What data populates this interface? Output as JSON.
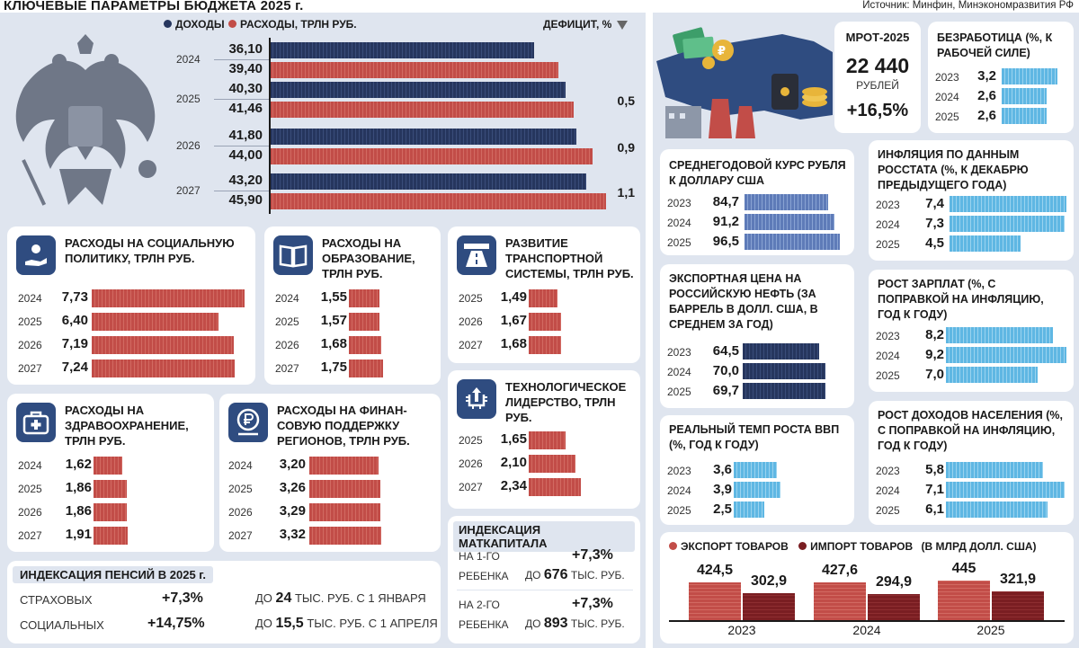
{
  "header": {
    "title": "КЛЮЧЕВЫЕ ПАРАМЕТРЫ БЮДЖЕТА 2025 г.",
    "source": "Источник: Минфин, Минэкономразвития РФ"
  },
  "colors": {
    "revenue": "#26365e",
    "expense": "#c24d48",
    "steel": "#5e7bb8",
    "light": "#5fb7e3",
    "panel": "#dfe5ef"
  },
  "chart_data": [
    {
      "id": "budget",
      "type": "bar",
      "title": "",
      "legend": [
        "ДОХОДЫ",
        "РАСХОДЫ, ТРЛН РУБ."
      ],
      "deficit_label": "ДЕФИЦИТ, %",
      "categories": [
        "2024",
        "2025",
        "2026",
        "2027"
      ],
      "series": [
        {
          "name": "ДОХОДЫ",
          "values": [
            "36,10",
            "40,30",
            "41,80",
            "43,20"
          ]
        },
        {
          "name": "РАСХОДЫ",
          "values": [
            "39,40",
            "41,46",
            "44,00",
            "45,90"
          ]
        }
      ],
      "deficit": [
        "",
        "0,5",
        "0,9",
        "1,1"
      ],
      "xlim": [
        0,
        46
      ]
    },
    {
      "id": "social",
      "type": "bar",
      "title": "РАСХОДЫ НА СОЦИАЛЬНУЮ ПОЛИТИКУ, ТРЛН РУБ.",
      "categories": [
        "2024",
        "2025",
        "2026",
        "2027"
      ],
      "values": [
        "7,73",
        "6,40",
        "7,19",
        "7,24"
      ],
      "xlim": [
        0,
        7.73
      ]
    },
    {
      "id": "education",
      "type": "bar",
      "title": "РАСХОДЫ НА ОБРАЗОВАНИЕ, ТРЛН РУБ.",
      "categories": [
        "2024",
        "2025",
        "2026",
        "2027"
      ],
      "values": [
        "1,55",
        "1,57",
        "1,68",
        "1,75"
      ],
      "xlim": [
        0,
        1.75
      ]
    },
    {
      "id": "transport",
      "type": "bar",
      "title": "РАЗВИТИЕ ТРАНСПОРТНОЙ СИСТЕМЫ, ТРЛН РУБ.",
      "categories": [
        "2025",
        "2026",
        "2027"
      ],
      "values": [
        "1,49",
        "1,67",
        "1,68"
      ],
      "xlim": [
        0,
        1.68
      ]
    },
    {
      "id": "health",
      "type": "bar",
      "title": "РАСХОДЫ НА ЗДРАВООХРАНЕНИЕ, ТРЛН РУБ.",
      "categories": [
        "2024",
        "2025",
        "2026",
        "2027"
      ],
      "values": [
        "1,62",
        "1,86",
        "1,86",
        "1,91"
      ],
      "xlim": [
        0,
        1.91
      ]
    },
    {
      "id": "regions",
      "type": "bar",
      "title": "РАСХОДЫ НА ФИНАН-СОВУЮ ПОДДЕРЖКУ РЕГИОНОВ, ТРЛН РУБ.",
      "categories": [
        "2024",
        "2025",
        "2026",
        "2027"
      ],
      "values": [
        "3,20",
        "3,26",
        "3,29",
        "3,32"
      ],
      "xlim": [
        0,
        3.32
      ]
    },
    {
      "id": "tech",
      "type": "bar",
      "title": "ТЕХНОЛОГИЧЕСКОЕ ЛИДЕРСТВО, ТРЛН РУБ.",
      "categories": [
        "2025",
        "2026",
        "2027"
      ],
      "values": [
        "1,65",
        "2,10",
        "2,34"
      ],
      "xlim": [
        0,
        2.34
      ]
    },
    {
      "id": "unemployment",
      "type": "bar",
      "title": "БЕЗРАБОТИЦА (%, К РАБОЧЕЙ СИЛЕ)",
      "categories": [
        "2023",
        "2024",
        "2025"
      ],
      "values": [
        "3,2",
        "2,6",
        "2,6"
      ],
      "xlim": [
        0,
        3.2
      ]
    },
    {
      "id": "rate",
      "type": "bar",
      "title": "СРЕДНЕГОДОВОЙ КУРС РУБЛЯ К ДОЛЛАРУ США",
      "categories": [
        "2023",
        "2024",
        "2025"
      ],
      "values": [
        "84,7",
        "91,2",
        "96,5"
      ],
      "xlim": [
        0,
        96.5
      ]
    },
    {
      "id": "inflation",
      "type": "bar",
      "title": "ИНФЛЯЦИЯ ПО ДАННЫМ РОССТАТА (%, К ДЕКАБРЮ ПРЕДЫДУЩЕГО ГОДА)",
      "categories": [
        "2023",
        "2024",
        "2025"
      ],
      "values": [
        "7,4",
        "7,3",
        "4,5"
      ],
      "xlim": [
        0,
        7.4
      ]
    },
    {
      "id": "oil",
      "type": "bar",
      "title": "ЭКСПОРТНАЯ ЦЕНА НА РОССИЙСКУЮ НЕФТЬ (ЗА БАРРЕЛЬ В ДОЛЛ. США, В СРЕДНЕМ ЗА ГОД)",
      "categories": [
        "2023",
        "2024",
        "2025"
      ],
      "values": [
        "64,5",
        "70,0",
        "69,7"
      ],
      "xlim": [
        0,
        70
      ]
    },
    {
      "id": "wages",
      "type": "bar",
      "title": "РОСТ ЗАРПЛАТ (%, С ПОПРАВКОЙ НА ИНФЛЯЦИЮ, ГОД К ГОДУ)",
      "categories": [
        "2023",
        "2024",
        "2025"
      ],
      "values": [
        "8,2",
        "9,2",
        "7,0"
      ],
      "xlim": [
        0,
        9.2
      ]
    },
    {
      "id": "gdp",
      "type": "bar",
      "title": "РЕАЛЬНЫЙ ТЕМП РОСТА ВВП (%, ГОД К ГОДУ)",
      "categories": [
        "2023",
        "2024",
        "2025"
      ],
      "values": [
        "3,6",
        "3,9",
        "2,5"
      ],
      "xlim": [
        0,
        5.8
      ]
    },
    {
      "id": "income",
      "type": "bar",
      "title": "РОСТ ДОХОДОВ НАСЕЛЕНИЯ (%, С ПОПРАВКОЙ НА ИНФЛЯЦИЮ, ГОД К ГОДУ)",
      "categories": [
        "2023",
        "2024",
        "2025"
      ],
      "values": [
        "5,8",
        "7,1",
        "6,1"
      ],
      "xlim": [
        0,
        7.1
      ]
    },
    {
      "id": "trade",
      "type": "bar",
      "title": "(В МЛРД ДОЛЛ. США)",
      "legend": [
        "ЭКСПОРТ ТОВАРОВ",
        "ИМПОРТ ТОВАРОВ"
      ],
      "categories": [
        "2023",
        "2024",
        "2025"
      ],
      "series": [
        {
          "name": "ЭКСПОРТ ТОВАРОВ",
          "values": [
            "424,5",
            "427,6",
            "445"
          ]
        },
        {
          "name": "ИМПОРТ ТОВАРОВ",
          "values": [
            "302,9",
            "294,9",
            "321,9"
          ]
        }
      ],
      "ylim": [
        0,
        445
      ]
    }
  ],
  "mrot": {
    "title": "МРОТ-2025",
    "value": "22 440",
    "unit": "РУБЛЕЙ",
    "change": "+16,5%"
  },
  "pensions": {
    "title": "ИНДЕКСАЦИЯ ПЕНСИЙ В 2025 г.",
    "rows": [
      {
        "label": "СТРАХОВЫХ",
        "pct": "+7,3%",
        "pre": "ДО",
        "amount": "24",
        "tail": "ТЫС. РУБ. С 1 ЯНВАРЯ"
      },
      {
        "label": "СОЦИАЛЬНЫХ",
        "pct": "+14,75%",
        "pre": "ДО",
        "amount": "15,5",
        "tail": "ТЫС. РУБ. С 1 АПРЕЛЯ"
      }
    ]
  },
  "matcap": {
    "title": "ИНДЕКСАЦИЯ МАТКАПИТАЛА",
    "rows": [
      {
        "line1": "НА 1-ГО",
        "line2": "РЕБЕНКА",
        "pct": "+7,3%",
        "pre": "ДО",
        "amount": "676",
        "tail": "ТЫС. РУБ."
      },
      {
        "line1": "НА 2-ГО",
        "line2": "РЕБЕНКА",
        "pct": "+7,3%",
        "pre": "ДО",
        "amount": "893",
        "tail": "ТЫС. РУБ."
      }
    ]
  }
}
